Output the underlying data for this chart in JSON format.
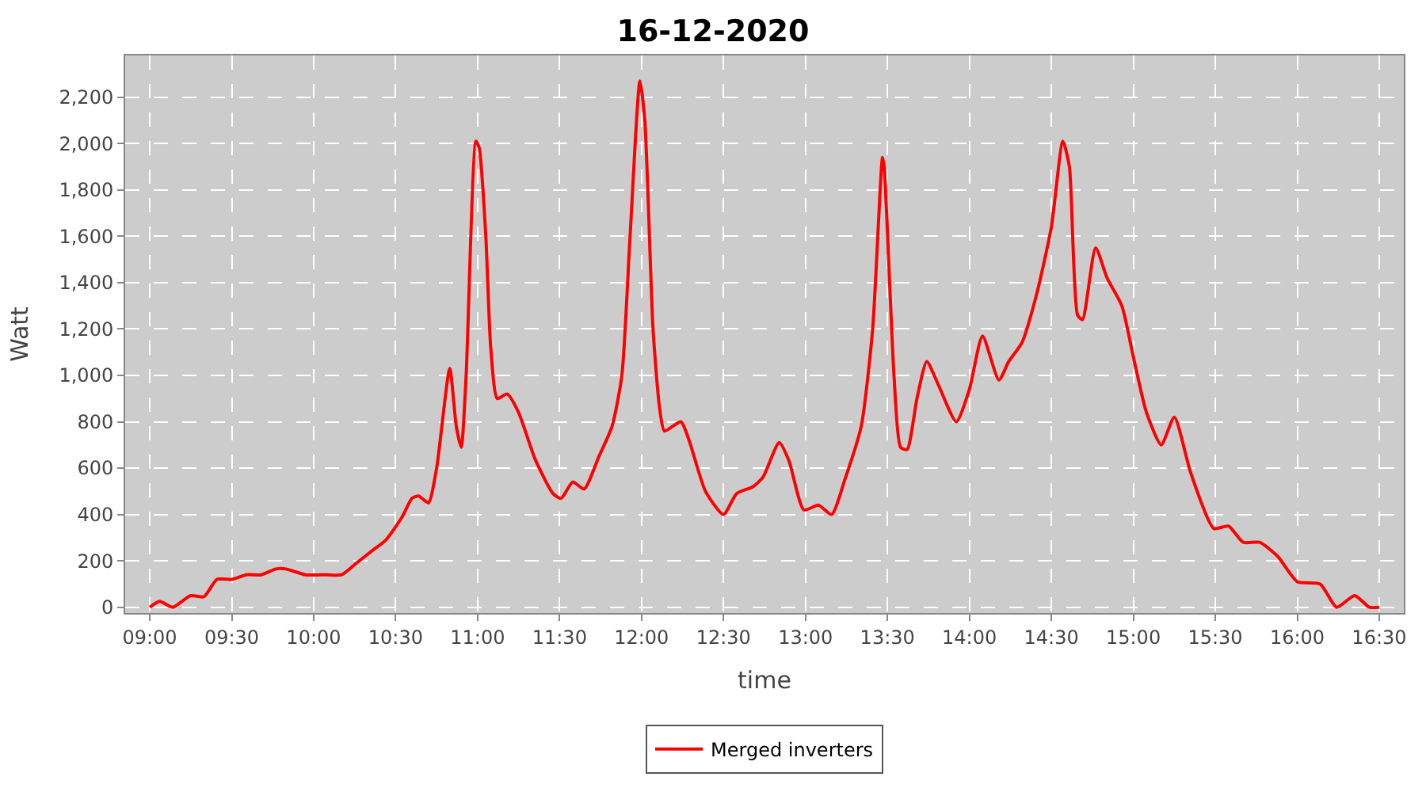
{
  "chart_data": {
    "type": "line",
    "title": "16-12-2020",
    "xlabel": "time",
    "ylabel": "Watt",
    "x": [
      9.0,
      9.06,
      9.14,
      9.25,
      9.33,
      9.41,
      9.5,
      9.59,
      9.68,
      9.77,
      9.83,
      9.95,
      10.08,
      10.17,
      10.26,
      10.35,
      10.44,
      10.54,
      10.6,
      10.64,
      10.7,
      10.75,
      10.83,
      10.87,
      10.9,
      10.93,
      10.99,
      11.01,
      11.05,
      11.08,
      11.12,
      11.18,
      11.25,
      11.35,
      11.46,
      11.51,
      11.58,
      11.65,
      11.74,
      11.82,
      11.88,
      11.93,
      11.99,
      12.02,
      12.07,
      12.11,
      12.14,
      12.24,
      12.29,
      12.39,
      12.5,
      12.58,
      12.68,
      12.74,
      12.84,
      12.9,
      12.99,
      13.08,
      13.16,
      13.24,
      13.34,
      13.41,
      13.47,
      13.48,
      13.54,
      13.58,
      13.62,
      13.68,
      13.74,
      13.81,
      13.92,
      14.0,
      14.08,
      14.18,
      14.24,
      14.32,
      14.41,
      14.5,
      14.57,
      14.61,
      14.66,
      14.69,
      14.77,
      14.84,
      14.93,
      15.0,
      15.08,
      15.17,
      15.25,
      15.35,
      15.49,
      15.58,
      15.67,
      15.77,
      15.88,
      16.0,
      16.14,
      16.24,
      16.35,
      16.44,
      16.5
    ],
    "series": [
      {
        "name": "Merged inverters",
        "color": "#ff0000",
        "values": [
          0,
          25,
          0,
          50,
          45,
          120,
          120,
          140,
          140,
          165,
          165,
          140,
          140,
          140,
          190,
          240,
          290,
          390,
          470,
          480,
          450,
          600,
          1030,
          780,
          690,
          1000,
          2010,
          1980,
          1600,
          1120,
          900,
          920,
          840,
          640,
          490,
          470,
          540,
          510,
          650,
          780,
          1000,
          1600,
          2270,
          2100,
          1200,
          860,
          760,
          800,
          720,
          500,
          400,
          490,
          520,
          560,
          710,
          630,
          420,
          440,
          400,
          550,
          780,
          1200,
          1940,
          1900,
          1000,
          690,
          680,
          900,
          1060,
          960,
          800,
          940,
          1170,
          980,
          1060,
          1140,
          1350,
          1640,
          2010,
          1900,
          1260,
          1240,
          1550,
          1420,
          1300,
          1080,
          840,
          700,
          820,
          580,
          340,
          350,
          280,
          280,
          220,
          110,
          100,
          0,
          50,
          0,
          0
        ]
      }
    ],
    "xlim": [
      8.85,
      16.65
    ],
    "xticks": [
      {
        "value": 9.0,
        "label": "09:00"
      },
      {
        "value": 9.5,
        "label": "09:30"
      },
      {
        "value": 10.0,
        "label": "10:00"
      },
      {
        "value": 10.5,
        "label": "10:30"
      },
      {
        "value": 11.0,
        "label": "11:00"
      },
      {
        "value": 11.5,
        "label": "11:30"
      },
      {
        "value": 12.0,
        "label": "12:00"
      },
      {
        "value": 12.5,
        "label": "12:30"
      },
      {
        "value": 13.0,
        "label": "13:00"
      },
      {
        "value": 13.5,
        "label": "13:30"
      },
      {
        "value": 14.0,
        "label": "14:00"
      },
      {
        "value": 14.5,
        "label": "14:30"
      },
      {
        "value": 15.0,
        "label": "15:00"
      },
      {
        "value": 15.5,
        "label": "15:30"
      },
      {
        "value": 16.0,
        "label": "16:00"
      },
      {
        "value": 16.5,
        "label": "16:30"
      }
    ],
    "ylim": [
      -25,
      2380
    ],
    "yticks": [
      0,
      200,
      400,
      600,
      800,
      {
        "value": 1000,
        "label": "1,000"
      },
      {
        "value": 1200,
        "label": "1,200"
      },
      {
        "value": 1400,
        "label": "1,400"
      },
      {
        "value": 1600,
        "label": "1,600"
      },
      {
        "value": 1800,
        "label": "1,800"
      },
      {
        "value": 2000,
        "label": "2,000"
      },
      {
        "value": 2200,
        "label": "2,200"
      }
    ],
    "grid": true,
    "legend": "bottom",
    "line_style": "solid",
    "marker": "none"
  }
}
